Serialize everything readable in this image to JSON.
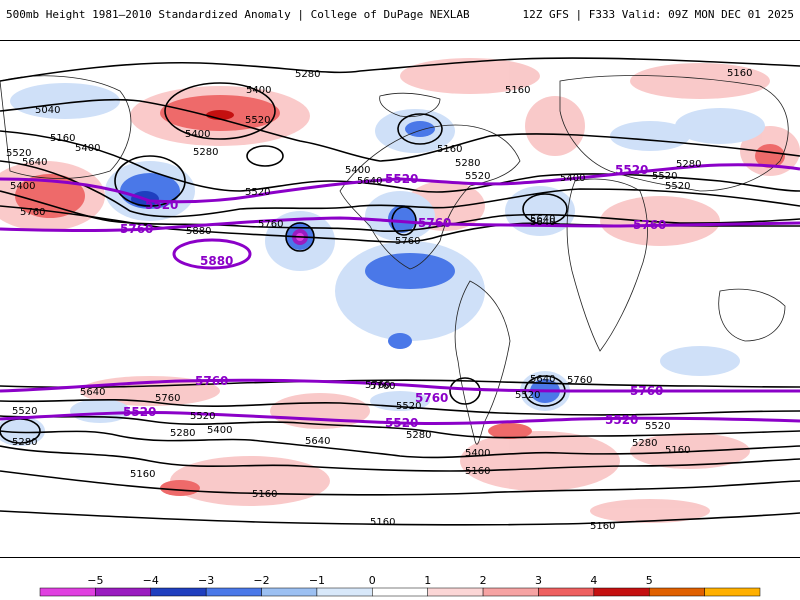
{
  "header": {
    "title": "500mb Height 1981–2010 Standardized Anomaly | College of DuPage NEXLAB",
    "run_info": "12Z GFS | F333 Valid: 09Z MON DEC 01 2025"
  },
  "map": {
    "contour_labels": {
      "l1": "5280",
      "l2": "5400",
      "l3": "5040",
      "l4": "5160",
      "l5": "5520",
      "l6": "5400",
      "l7": "5520",
      "l8": "5280",
      "l9": "5520",
      "l10": "5640",
      "l11": "5400",
      "l12": "5160",
      "l13": "5280",
      "l14": "5400",
      "l15": "5640",
      "l16": "5520",
      "l17": "5160",
      "l18": "5400",
      "l19": "5280",
      "l20": "5520",
      "l21": "5400",
      "l22": "5760",
      "l23": "5880",
      "l24": "5760",
      "l25": "5760",
      "l26": "5640",
      "l27": "5160",
      "l28": "5520",
      "l29": "5280",
      "l30": "5520",
      "l31": "5760",
      "l32": "5640",
      "l33": "5760",
      "l34": "5520",
      "l35": "5400",
      "l36": "5280",
      "l37": "5640",
      "l38": "5760",
      "l39": "5520",
      "l40": "5280",
      "l41": "5400",
      "l42": "5160",
      "l43": "5640",
      "l44": "5760",
      "l45": "5520",
      "l46": "5160",
      "l47": "5280",
      "l48": "5160",
      "l49": "5160",
      "l50": "5160",
      "l51": "5640",
      "l52": "5520",
      "l53": "5160"
    },
    "purple_labels": {
      "p1": "5520",
      "p2": "5760",
      "p3": "5880",
      "p4": "5520",
      "p5": "5760",
      "p6": "5520",
      "p7": "5760",
      "p8": "5760",
      "p9": "5520",
      "p10": "5760",
      "p11": "5520",
      "p12": "5760",
      "p13": "5520"
    }
  },
  "colorbar": {
    "labels": [
      "−5",
      "−4",
      "−3",
      "−2",
      "−1",
      "0",
      "1",
      "2",
      "3",
      "4",
      "5"
    ],
    "colors": [
      "#e040e0",
      "#9a1cc0",
      "#1f3fbf",
      "#4a78e8",
      "#9cc0f2",
      "#d8e8fa",
      "#ffffff",
      "#fbd6d6",
      "#f6a3a3",
      "#ee6060",
      "#c41010",
      "#e06000",
      "#ffb000"
    ]
  }
}
